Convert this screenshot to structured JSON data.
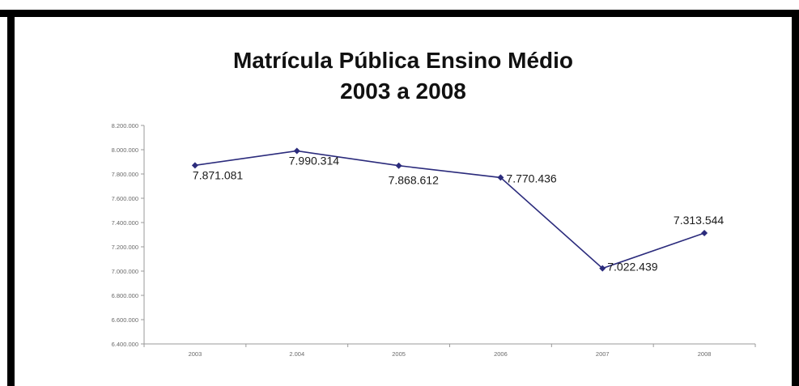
{
  "chart_data": {
    "type": "line",
    "title_line1": "Matrícula Pública Ensino Médio",
    "title_line2": "2003 a 2008",
    "xlabel": "",
    "ylabel": "",
    "categories": [
      "2003",
      "2.004",
      "2005",
      "2006",
      "2007",
      "2008"
    ],
    "series": [
      {
        "values": [
          7871081,
          7990314,
          7868612,
          7770436,
          7022439,
          7313544
        ],
        "labels": [
          "7.871.081",
          "7.990.314",
          "7.868.612",
          "7.770.436",
          "7.022.439",
          "7.313.544"
        ],
        "color": "#2b2b7c"
      }
    ],
    "ylim": [
      6400000,
      8200000
    ],
    "yticks": [
      6400000,
      6600000,
      6800000,
      7000000,
      7200000,
      7400000,
      7600000,
      7800000,
      8000000,
      8200000
    ],
    "ytick_labels": [
      "6.400.000",
      "6.600.000",
      "6.800.000",
      "7.000.000",
      "7.200.000",
      "7.400.000",
      "7.600.000",
      "7.800.000",
      "8.000.000",
      "8.200.000"
    ],
    "grid": false,
    "legend": "none"
  }
}
